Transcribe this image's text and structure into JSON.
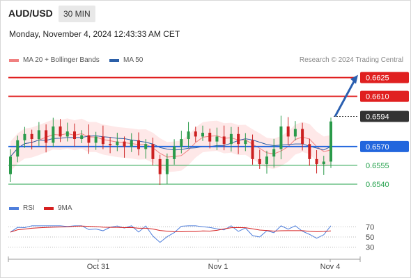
{
  "header": {
    "symbol": "AUD/USD",
    "timeframe": "30 MIN"
  },
  "datetime": "Monday, November 4, 2024 12:43:33 AM CET",
  "legend": {
    "ma20_label": "MA 20 + Bollinger Bands",
    "ma20_color": "#f08080",
    "ma50_label": "MA 50",
    "ma50_color": "#2b5fa8"
  },
  "credit": "Research © 2024 Trading Central",
  "rsi_legend": {
    "rsi_label": "RSI",
    "rsi_color": "#4f7fdc",
    "ma9_label": "9MA",
    "ma9_color": "#d62020"
  },
  "colors": {
    "resistance": "#e02020",
    "pivot": "#2266dd",
    "support": "#22a04a",
    "current": "#333333",
    "up_candle": "#2a9a4a",
    "down_candle": "#cc2020",
    "band_fill": "#fde0e0"
  },
  "chart_data": {
    "type": "candlestick",
    "price_range": [
      0.653,
      0.6632
    ],
    "levels": [
      {
        "label": "0.6625",
        "value": 0.6625,
        "kind": "resistance"
      },
      {
        "label": "0.6610",
        "value": 0.661,
        "kind": "resistance"
      },
      {
        "label": "0.6594",
        "value": 0.6594,
        "kind": "current"
      },
      {
        "label": "0.6570",
        "value": 0.657,
        "kind": "pivot"
      },
      {
        "label": "0.6555",
        "value": 0.6555,
        "kind": "support"
      },
      {
        "label": "0.6540",
        "value": 0.654,
        "kind": "support"
      }
    ],
    "x_ticks": [
      "Oct 31",
      "Nov 1",
      "Nov 4"
    ],
    "rsi_ticks": [
      70,
      50,
      30
    ],
    "forecast": {
      "from": 0.6594,
      "to": 0.6625
    }
  }
}
